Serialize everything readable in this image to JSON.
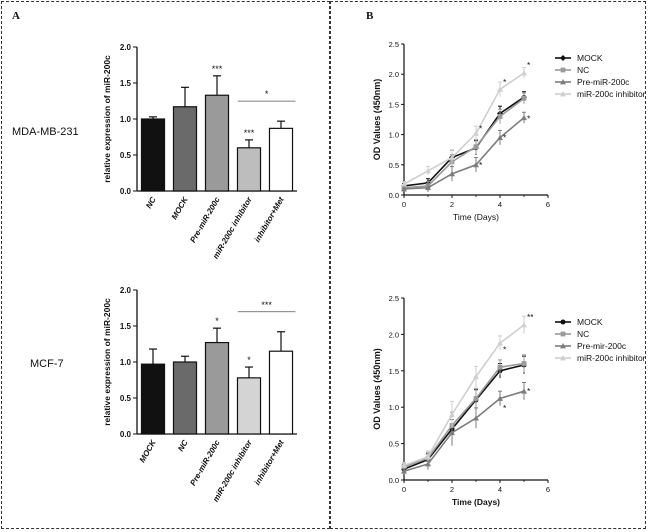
{
  "panels": {
    "a_label": "A",
    "b_label": "B"
  },
  "row_labels": {
    "top": "MDA-MB-231",
    "bottom": "MCF-7"
  },
  "chart_data": [
    {
      "id": "bar_mda",
      "type": "bar",
      "ylabel": "relative expression of miR-200c",
      "ylim": [
        0,
        2.0
      ],
      "yticks": [
        "0.0",
        "0.5",
        "1.0",
        "1.5",
        "2.0"
      ],
      "categories": [
        "NC",
        "MOCK",
        "Pre-miR-200c",
        "miR-200c inhibitor",
        "inhibitor+Met"
      ],
      "values": [
        1.0,
        1.17,
        1.33,
        0.6,
        0.87
      ],
      "errors": [
        0.03,
        0.27,
        0.27,
        0.11,
        0.1
      ],
      "colors": [
        "#111111",
        "#6a6a6a",
        "#9a9a9a",
        "#bdbdbd",
        "#ffffff"
      ],
      "annotations": [
        "",
        "",
        "***",
        "***",
        ""
      ],
      "bracket": {
        "from": 3,
        "to": 4,
        "label": "*"
      }
    },
    {
      "id": "bar_mcf",
      "type": "bar",
      "ylabel": "relative expression of miR-200c",
      "ylim": [
        0,
        2.0
      ],
      "yticks": [
        "0.0",
        "0.5",
        "1.0",
        "1.5",
        "2.0"
      ],
      "categories": [
        "MOCK",
        "NC",
        "Pre-miR-200c",
        "miR-200c inhibitor",
        "inhibitor+Met"
      ],
      "values": [
        0.97,
        1.0,
        1.27,
        0.78,
        1.15
      ],
      "errors": [
        0.21,
        0.08,
        0.2,
        0.15,
        0.27
      ],
      "colors": [
        "#111111",
        "#6a6a6a",
        "#9a9a9a",
        "#d4d4d4",
        "#ffffff"
      ],
      "annotations": [
        "",
        "",
        "*",
        "*",
        ""
      ],
      "bracket": {
        "from": 3,
        "to": 4,
        "label": "***"
      }
    },
    {
      "id": "line_mda",
      "type": "line",
      "xlabel": "Time (Days)",
      "ylabel": "OD Values (450nm)",
      "xlim": [
        0,
        6
      ],
      "ylim": [
        0,
        2.5
      ],
      "xticks": [
        "0",
        "2",
        "4",
        "6"
      ],
      "yticks": [
        "0.0",
        "0.5",
        "1.0",
        "1.5",
        "2.0",
        "2.5"
      ],
      "x": [
        0,
        1,
        2,
        3,
        4,
        5
      ],
      "series": [
        {
          "name": "MOCK",
          "values": [
            0.15,
            0.2,
            0.62,
            0.78,
            1.35,
            1.62
          ],
          "color": "#111111",
          "marker": "diamond"
        },
        {
          "name": "NC",
          "values": [
            0.12,
            0.15,
            0.55,
            0.8,
            1.3,
            1.6
          ],
          "color": "#9a9a9a",
          "marker": "square"
        },
        {
          "name": "Pre-miR-200c",
          "values": [
            0.1,
            0.12,
            0.35,
            0.5,
            0.95,
            1.28
          ],
          "color": "#7d7d7d",
          "marker": "triangle"
        },
        {
          "name": "miR-200c inhibitor",
          "values": [
            0.18,
            0.4,
            0.62,
            1.02,
            1.75,
            2.02
          ],
          "color": "#cfcfcf",
          "marker": "triangle"
        }
      ],
      "errors": [
        0.04,
        0.07,
        0.12,
        0.12,
        0.12,
        0.09
      ],
      "annotations": [
        {
          "x": 3,
          "y": 1.05,
          "text": "*"
        },
        {
          "x": 3,
          "y": 0.45,
          "text": "*"
        },
        {
          "x": 4,
          "y": 1.82,
          "text": "*"
        },
        {
          "x": 4,
          "y": 0.9,
          "text": "*"
        },
        {
          "x": 5,
          "y": 2.1,
          "text": "*"
        },
        {
          "x": 5,
          "y": 1.22,
          "text": "*"
        }
      ]
    },
    {
      "id": "line_mcf",
      "type": "line",
      "xlabel": "Time (Days)",
      "ylabel": "OD Values (450nm)",
      "xlim": [
        0,
        6
      ],
      "ylim": [
        0,
        2.5
      ],
      "xticks": [
        "0",
        "2",
        "4",
        "6"
      ],
      "yticks": [
        "0.0",
        "0.5",
        "1.0",
        "1.5",
        "2.0",
        "2.5"
      ],
      "x": [
        0,
        1,
        2,
        3,
        4,
        5
      ],
      "series": [
        {
          "name": "MOCK",
          "values": [
            0.15,
            0.28,
            0.7,
            1.1,
            1.5,
            1.58
          ],
          "color": "#111111",
          "marker": "circle"
        },
        {
          "name": "NC",
          "values": [
            0.18,
            0.3,
            0.75,
            1.12,
            1.55,
            1.6
          ],
          "color": "#9a9a9a",
          "marker": "square"
        },
        {
          "name": "Pre-mir-200c",
          "values": [
            0.12,
            0.22,
            0.65,
            0.85,
            1.12,
            1.22
          ],
          "color": "#7d7d7d",
          "marker": "triangle"
        },
        {
          "name": "miR-200c inhibitor",
          "values": [
            0.2,
            0.32,
            0.9,
            1.42,
            1.88,
            2.13
          ],
          "color": "#cfcfcf",
          "marker": "triangle"
        }
      ],
      "errors": [
        0.04,
        0.08,
        0.18,
        0.14,
        0.1,
        0.12
      ],
      "annotations": [
        {
          "x": 4,
          "y": 1.75,
          "text": "*"
        },
        {
          "x": 4,
          "y": 0.95,
          "text": "*"
        },
        {
          "x": 5,
          "y": 2.2,
          "text": "**"
        },
        {
          "x": 5,
          "y": 1.18,
          "text": "*"
        }
      ]
    }
  ]
}
